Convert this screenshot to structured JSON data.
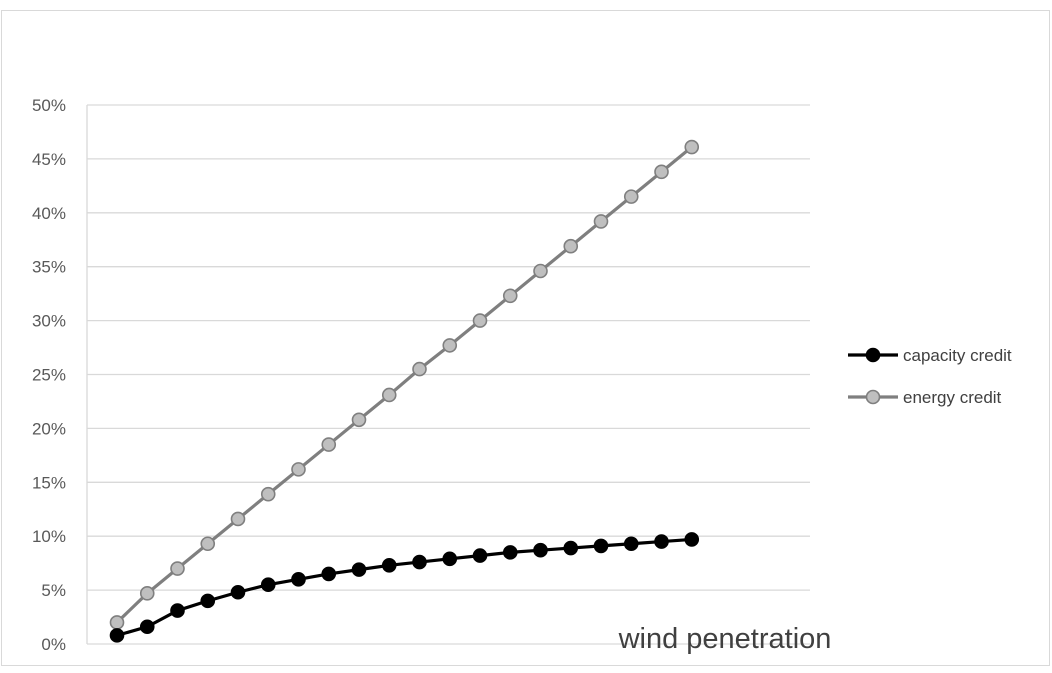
{
  "chart_data": {
    "type": "line",
    "title": "",
    "xlabel": "wind penetration",
    "ylabel": "",
    "ylim": [
      0,
      50
    ],
    "y_unit": "%",
    "y_ticks": [
      "0%",
      "5%",
      "10%",
      "15%",
      "20%",
      "25%",
      "30%",
      "35%",
      "40%",
      "45%",
      "50%"
    ],
    "x_axis_labels_shown": false,
    "grid": true,
    "legend_position": "right",
    "x": [
      1,
      2,
      3,
      4,
      5,
      6,
      7,
      8,
      9,
      10,
      11,
      12,
      13,
      14,
      15,
      16,
      17,
      18,
      19,
      20
    ],
    "series": [
      {
        "name": "capacity credit",
        "color": "#000000",
        "values": [
          0.8,
          1.6,
          3.1,
          4.0,
          4.8,
          5.5,
          6.0,
          6.5,
          6.9,
          7.3,
          7.6,
          7.9,
          8.2,
          8.5,
          8.7,
          8.9,
          9.1,
          9.3,
          9.5,
          9.7
        ]
      },
      {
        "name": "energy credit",
        "color": "#808080",
        "values": [
          2.0,
          4.7,
          7.0,
          9.3,
          11.6,
          13.9,
          16.2,
          18.5,
          20.8,
          23.1,
          25.5,
          27.7,
          30.0,
          32.3,
          34.6,
          36.9,
          39.2,
          41.5,
          43.8,
          46.1
        ]
      }
    ]
  }
}
